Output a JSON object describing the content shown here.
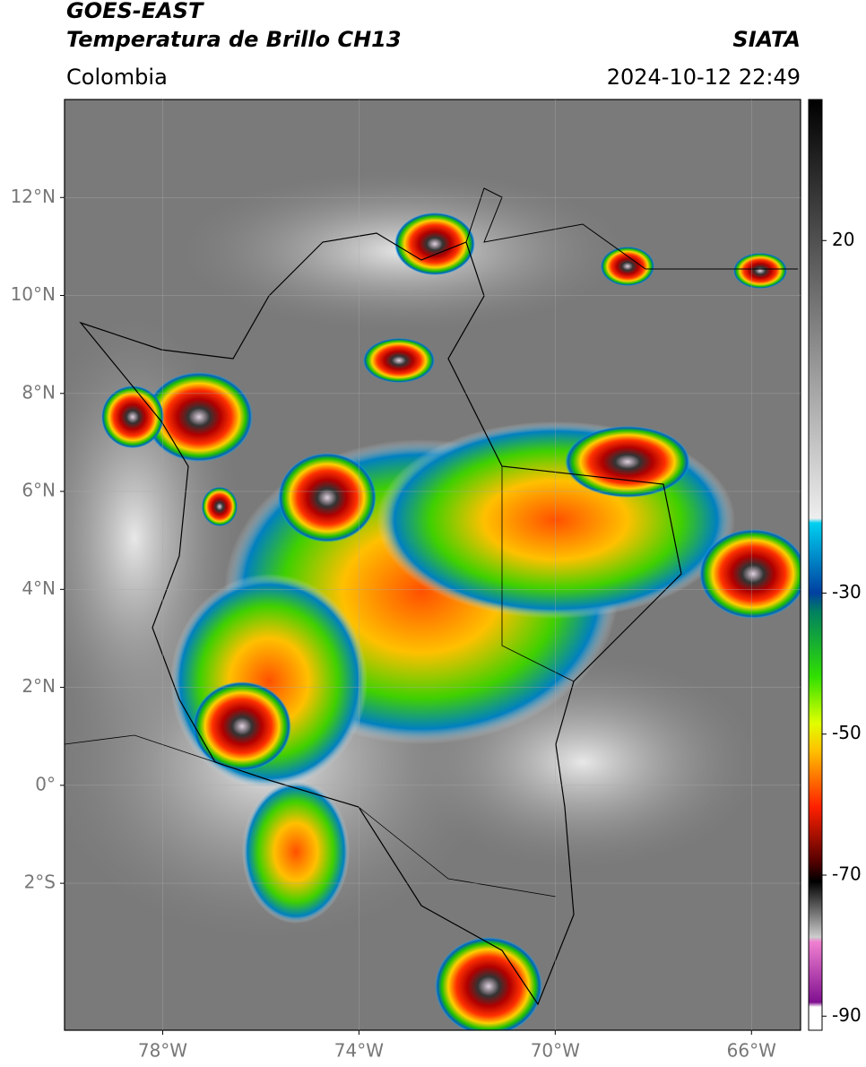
{
  "header": {
    "title": "GOES-EAST",
    "subtitle": "Temperatura de Brillo CH13",
    "region": "Colombia",
    "source": "SIATA",
    "datetime": "2024-10-12 22:49"
  },
  "map": {
    "lonlim": [
      -80,
      -65
    ],
    "latlim": [
      -5,
      14
    ],
    "xticks": [
      {
        "value": -78,
        "label": "78°W"
      },
      {
        "value": -74,
        "label": "74°W"
      },
      {
        "value": -70,
        "label": "70°W"
      },
      {
        "value": -66,
        "label": "66°W"
      }
    ],
    "yticks": [
      {
        "value": 12,
        "label": "12°N"
      },
      {
        "value": 10,
        "label": "10°N"
      },
      {
        "value": 8,
        "label": "8°N"
      },
      {
        "value": 6,
        "label": "6°N"
      },
      {
        "value": 4,
        "label": "4°N"
      },
      {
        "value": 2,
        "label": "2°N"
      },
      {
        "value": 0,
        "label": "0°"
      },
      {
        "value": -2,
        "label": "2°S"
      }
    ]
  },
  "colorbar": {
    "clim": [
      -92,
      40
    ],
    "ticks": [
      20,
      -30,
      -50,
      -70,
      -90
    ]
  }
}
